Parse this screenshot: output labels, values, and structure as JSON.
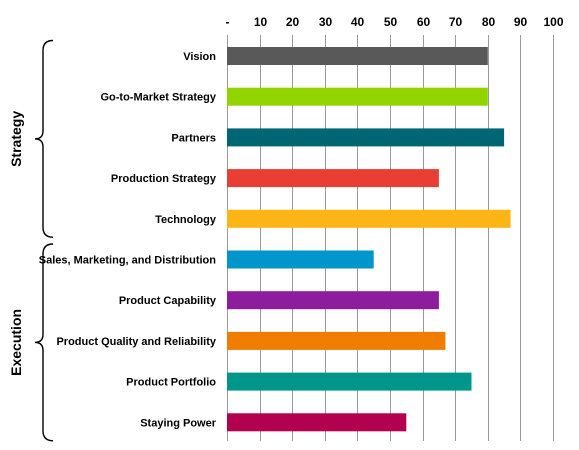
{
  "chart_data": {
    "type": "bar",
    "orientation": "horizontal",
    "xlim": [
      0,
      100
    ],
    "x_ticks": [
      "-",
      "10",
      "20",
      "30",
      "40",
      "50",
      "60",
      "70",
      "80",
      "90",
      "100"
    ],
    "x_tick_values": [
      0,
      10,
      20,
      30,
      40,
      50,
      60,
      70,
      80,
      90,
      100
    ],
    "xaxis_position": "top",
    "grid": "vertical",
    "categories": [
      "Vision",
      "Go-to-Market Strategy",
      "Partners",
      "Production Strategy",
      "Technology",
      "Sales, Marketing, and Distribution",
      "Product Capability",
      "Product Quality and Reliability",
      "Product Portfolio",
      "Staying Power"
    ],
    "values": [
      80,
      80,
      85,
      65,
      87,
      45,
      65,
      67,
      75,
      55
    ],
    "colors": [
      "#595959",
      "#92d400",
      "#006673",
      "#e83e33",
      "#fdb415",
      "#0096cc",
      "#8e1c9e",
      "#f07c00",
      "#00968b",
      "#b3004f"
    ],
    "groups": [
      {
        "label": "Strategy",
        "categories": [
          "Vision",
          "Go-to-Market Strategy",
          "Partners",
          "Production Strategy",
          "Technology"
        ]
      },
      {
        "label": "Execution",
        "categories": [
          "Sales, Marketing, and Distribution",
          "Product Capability",
          "Product Quality and Reliability",
          "Product Portfolio",
          "Staying Power"
        ]
      }
    ]
  }
}
